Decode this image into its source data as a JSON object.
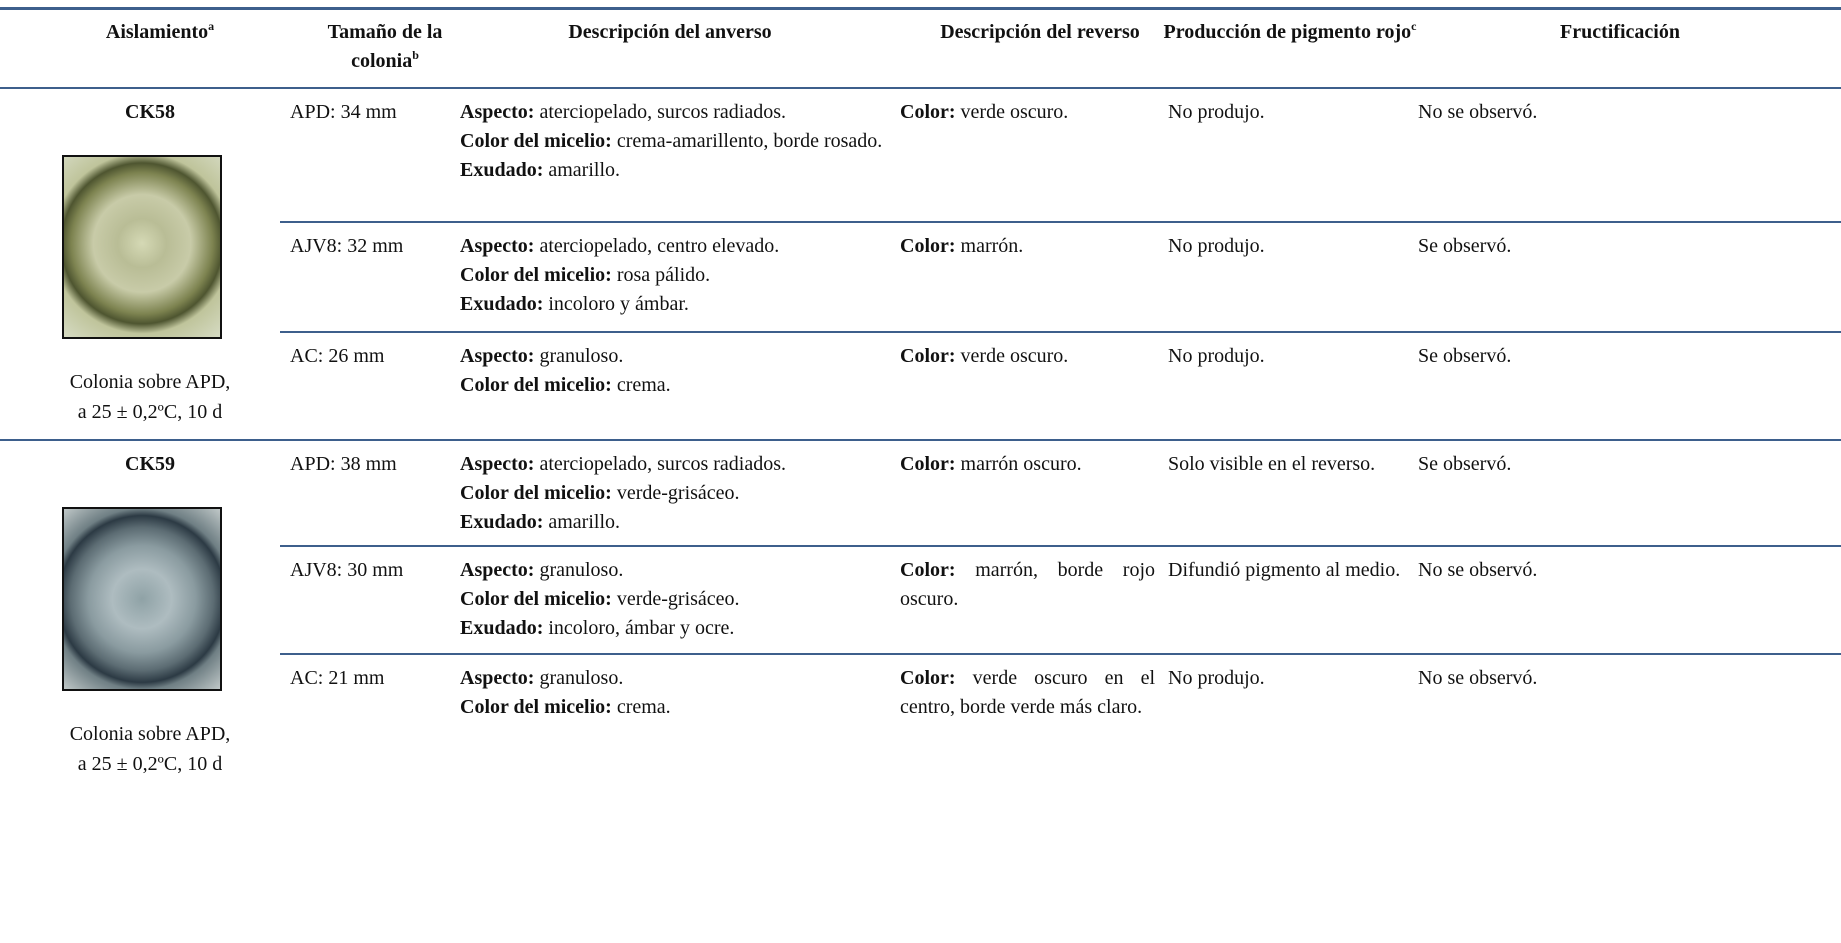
{
  "header": {
    "columns": [
      {
        "text": "Aislamiento",
        "sup": "a"
      },
      {
        "text": "Tamaño de la colonia",
        "sup": "b"
      },
      {
        "text": "Descripción del anverso"
      },
      {
        "text": "Descripción del reverso"
      },
      {
        "text": "Producción de pigmento rojo",
        "sup": "c"
      },
      {
        "text": "Fructificación"
      }
    ]
  },
  "isolates": [
    {
      "name": "CK58",
      "caption": [
        "Colonia sobre APD,",
        "a 25 ± 0,2ºC, 10 d"
      ],
      "rows": [
        {
          "size": "APD: 34 mm",
          "anverso": [
            {
              "label": "Aspecto:",
              "text": "aterciopelado, surcos radiados."
            },
            {
              "label": "Color del micelio:",
              "text": "crema-amarillento, borde rosado."
            },
            {
              "label": "Exudado:",
              "text": "amarillo."
            }
          ],
          "reverso": {
            "label": "Color:",
            "text": "verde oscuro."
          },
          "pigmento": "No produjo.",
          "fructificacion": "No se observó."
        },
        {
          "size": "AJV8: 32 mm",
          "anverso": [
            {
              "label": "Aspecto:",
              "text": "aterciopelado, centro elevado."
            },
            {
              "label": "Color del micelio:",
              "text": "rosa pálido."
            },
            {
              "label": "Exudado:",
              "text": "incoloro y ámbar."
            }
          ],
          "reverso": {
            "label": "Color:",
            "text": "marrón."
          },
          "pigmento": "No produjo.",
          "fructificacion": "Se observó."
        },
        {
          "size": "AC: 26 mm",
          "anverso": [
            {
              "label": "Aspecto:",
              "text": "granuloso."
            },
            {
              "label": "Color del micelio:",
              "text": "crema."
            }
          ],
          "reverso": {
            "label": "Color:",
            "text": "verde oscuro."
          },
          "pigmento": "No produjo.",
          "fructificacion": "Se observó."
        }
      ]
    },
    {
      "name": "CK59",
      "caption": [
        "Colonia sobre APD,",
        "a 25 ± 0,2ºC, 10 d"
      ],
      "rows": [
        {
          "size": "APD: 38 mm",
          "anverso": [
            {
              "label": "Aspecto:",
              "text": "aterciopelado, surcos radiados."
            },
            {
              "label": "Color del micelio:",
              "text": "verde-grisáceo."
            },
            {
              "label": "Exudado:",
              "text": "amarillo."
            }
          ],
          "reverso": {
            "label": "Color:",
            "text": "marrón oscuro."
          },
          "pigmento": "Solo visible en el reverso.",
          "fructificacion": "Se observó."
        },
        {
          "size": "AJV8: 30 mm",
          "anverso": [
            {
              "label": "Aspecto:",
              "text": "granuloso."
            },
            {
              "label": "Color del micelio:",
              "text": "verde-grisáceo."
            },
            {
              "label": "Exudado:",
              "text": "incoloro, ámbar y ocre."
            }
          ],
          "reverso": {
            "label": "Color:",
            "text": "marrón, borde rojo oscuro."
          },
          "pigmento": "Difundió pigmento al medio.",
          "fructificacion": "No se observó."
        },
        {
          "size": "AC: 21 mm",
          "anverso": [
            {
              "label": "Aspecto:",
              "text": "granuloso."
            },
            {
              "label": "Color del micelio:",
              "text": "crema."
            }
          ],
          "reverso": {
            "label": "Color:",
            "text": "verde oscuro en el centro, borde verde más claro."
          },
          "pigmento": "No produjo.",
          "fructificacion": "No se observó."
        }
      ]
    }
  ]
}
